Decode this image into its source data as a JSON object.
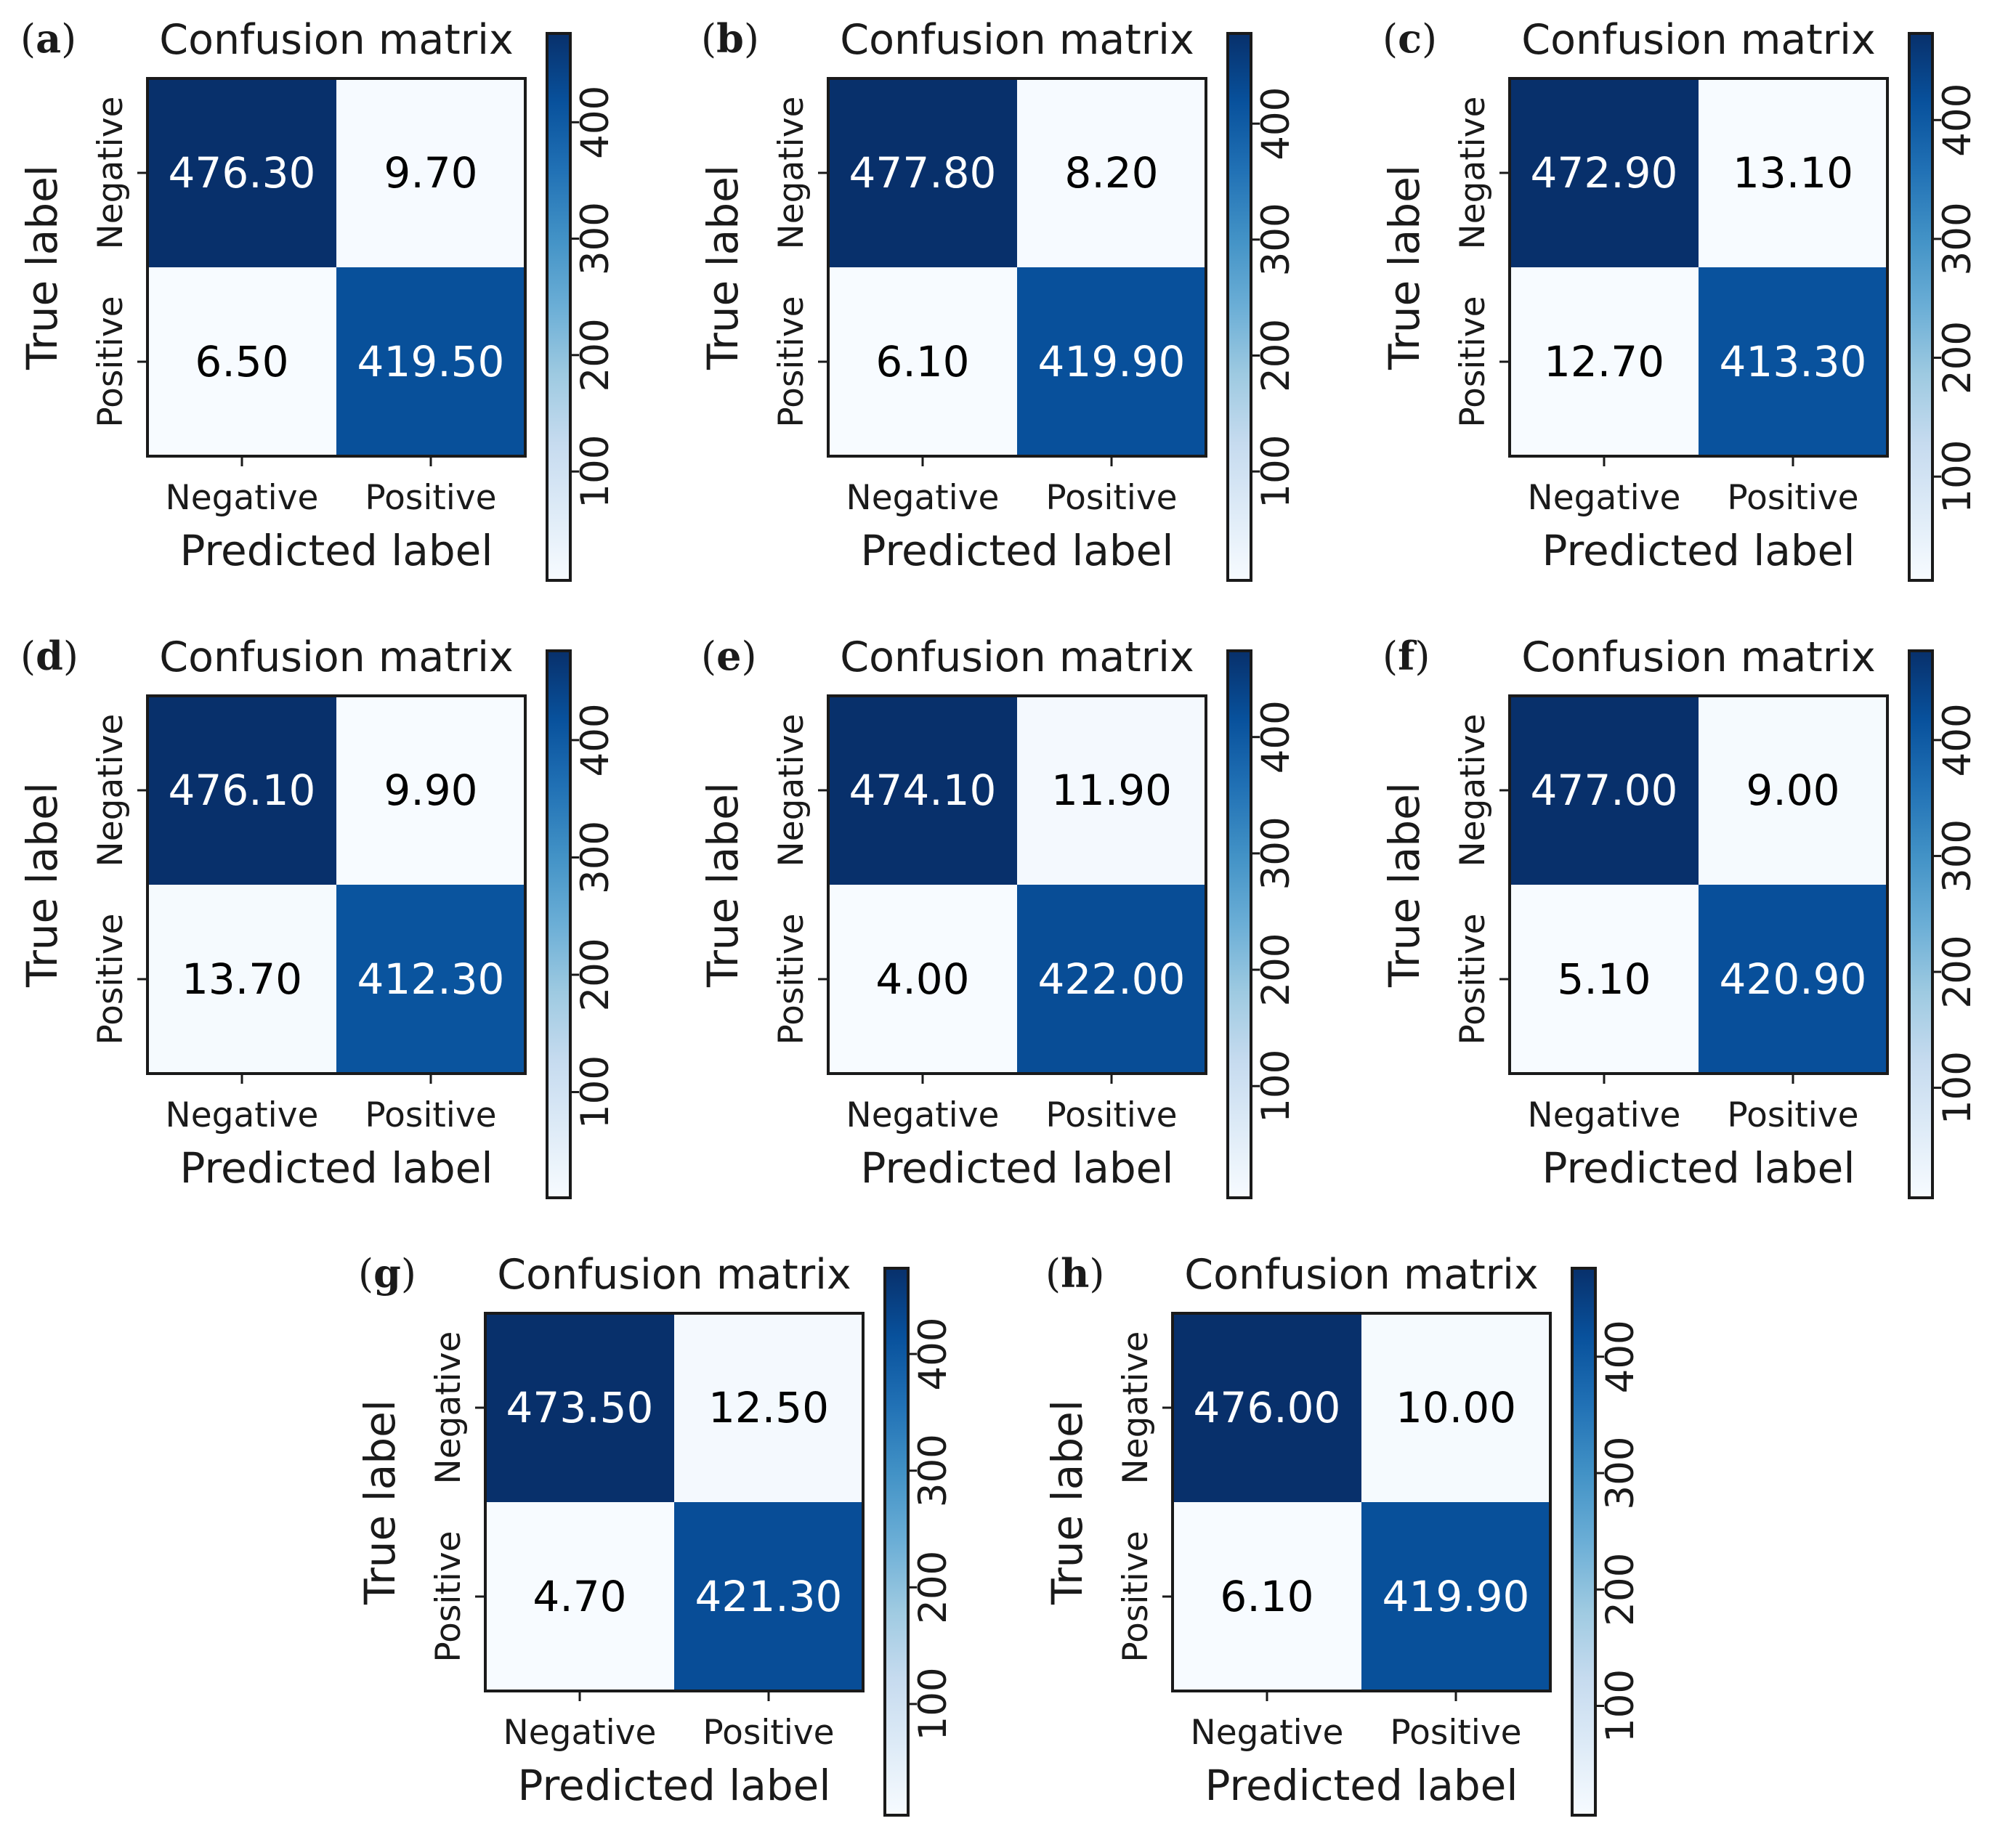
{
  "figure": {
    "layout": "3-3-2 grid of confusion matrix panels"
  },
  "chart_data": [
    {
      "panel": "a",
      "type": "heatmap",
      "title": "Confusion matrix",
      "xlabel": "Predicted label",
      "ylabel": "True label",
      "x_categories": [
        "Negative",
        "Positive"
      ],
      "y_categories": [
        "Negative",
        "Positive"
      ],
      "cells": [
        [
          476.3,
          9.7
        ],
        [
          6.5,
          419.5
        ]
      ],
      "cell_labels": [
        [
          "476.30",
          "9.70"
        ],
        [
          "6.50",
          "419.50"
        ]
      ],
      "colorbar_ticks": [
        "100",
        "200",
        "300",
        "400"
      ],
      "colorbar_tick_values": [
        100,
        200,
        300,
        400
      ]
    },
    {
      "panel": "b",
      "type": "heatmap",
      "title": "Confusion matrix",
      "xlabel": "Predicted label",
      "ylabel": "True label",
      "x_categories": [
        "Negative",
        "Positive"
      ],
      "y_categories": [
        "Negative",
        "Positive"
      ],
      "cells": [
        [
          477.8,
          8.2
        ],
        [
          6.1,
          419.9
        ]
      ],
      "cell_labels": [
        [
          "477.80",
          "8.20"
        ],
        [
          "6.10",
          "419.90"
        ]
      ],
      "colorbar_ticks": [
        "100",
        "200",
        "300",
        "400"
      ],
      "colorbar_tick_values": [
        100,
        200,
        300,
        400
      ]
    },
    {
      "panel": "c",
      "type": "heatmap",
      "title": "Confusion matrix",
      "xlabel": "Predicted label",
      "ylabel": "True label",
      "x_categories": [
        "Negative",
        "Positive"
      ],
      "y_categories": [
        "Negative",
        "Positive"
      ],
      "cells": [
        [
          472.9,
          13.1
        ],
        [
          12.7,
          413.3
        ]
      ],
      "cell_labels": [
        [
          "472.90",
          "13.10"
        ],
        [
          "12.70",
          "413.30"
        ]
      ],
      "colorbar_ticks": [
        "100",
        "200",
        "300",
        "400"
      ],
      "colorbar_tick_values": [
        100,
        200,
        300,
        400
      ]
    },
    {
      "panel": "d",
      "type": "heatmap",
      "title": "Confusion matrix",
      "xlabel": "Predicted label",
      "ylabel": "True label",
      "x_categories": [
        "Negative",
        "Positive"
      ],
      "y_categories": [
        "Negative",
        "Positive"
      ],
      "cells": [
        [
          476.1,
          9.9
        ],
        [
          13.7,
          412.3
        ]
      ],
      "cell_labels": [
        [
          "476.10",
          "9.90"
        ],
        [
          "13.70",
          "412.30"
        ]
      ],
      "colorbar_ticks": [
        "100",
        "200",
        "300",
        "400"
      ],
      "colorbar_tick_values": [
        100,
        200,
        300,
        400
      ]
    },
    {
      "panel": "e",
      "type": "heatmap",
      "title": "Confusion matrix",
      "xlabel": "Predicted label",
      "ylabel": "True label",
      "x_categories": [
        "Negative",
        "Positive"
      ],
      "y_categories": [
        "Negative",
        "Positive"
      ],
      "cells": [
        [
          474.1,
          11.9
        ],
        [
          4.0,
          422.0
        ]
      ],
      "cell_labels": [
        [
          "474.10",
          "11.90"
        ],
        [
          "4.00",
          "422.00"
        ]
      ],
      "colorbar_ticks": [
        "100",
        "200",
        "300",
        "400"
      ],
      "colorbar_tick_values": [
        100,
        200,
        300,
        400
      ]
    },
    {
      "panel": "f",
      "type": "heatmap",
      "title": "Confusion matrix",
      "xlabel": "Predicted label",
      "ylabel": "True label",
      "x_categories": [
        "Negative",
        "Positive"
      ],
      "y_categories": [
        "Negative",
        "Positive"
      ],
      "cells": [
        [
          477.0,
          9.0
        ],
        [
          5.1,
          420.9
        ]
      ],
      "cell_labels": [
        [
          "477.00",
          "9.00"
        ],
        [
          "5.10",
          "420.90"
        ]
      ],
      "colorbar_ticks": [
        "100",
        "200",
        "300",
        "400"
      ],
      "colorbar_tick_values": [
        100,
        200,
        300,
        400
      ]
    },
    {
      "panel": "g",
      "type": "heatmap",
      "title": "Confusion matrix",
      "xlabel": "Predicted label",
      "ylabel": "True label",
      "x_categories": [
        "Negative",
        "Positive"
      ],
      "y_categories": [
        "Negative",
        "Positive"
      ],
      "cells": [
        [
          473.5,
          12.5
        ],
        [
          4.7,
          421.3
        ]
      ],
      "cell_labels": [
        [
          "473.50",
          "12.50"
        ],
        [
          "4.70",
          "421.30"
        ]
      ],
      "colorbar_ticks": [
        "100",
        "200",
        "300",
        "400"
      ],
      "colorbar_tick_values": [
        100,
        200,
        300,
        400
      ]
    },
    {
      "panel": "h",
      "type": "heatmap",
      "title": "Confusion matrix",
      "xlabel": "Predicted label",
      "ylabel": "True label",
      "x_categories": [
        "Negative",
        "Positive"
      ],
      "y_categories": [
        "Negative",
        "Positive"
      ],
      "cells": [
        [
          476.0,
          10.0
        ],
        [
          6.1,
          419.9
        ]
      ],
      "cell_labels": [
        [
          "476.00",
          "10.00"
        ],
        [
          "6.10",
          "419.90"
        ]
      ],
      "colorbar_ticks": [
        "100",
        "200",
        "300",
        "400"
      ],
      "colorbar_tick_values": [
        100,
        200,
        300,
        400
      ]
    }
  ],
  "colormap": {
    "name": "Blues",
    "stops": [
      "#f7fbff",
      "#deebf7",
      "#c6dbef",
      "#9ecae1",
      "#6baed6",
      "#4292c6",
      "#2171b5",
      "#08519c",
      "#08306b"
    ],
    "light_text": "#ffffff",
    "dark_text": "#000000"
  }
}
